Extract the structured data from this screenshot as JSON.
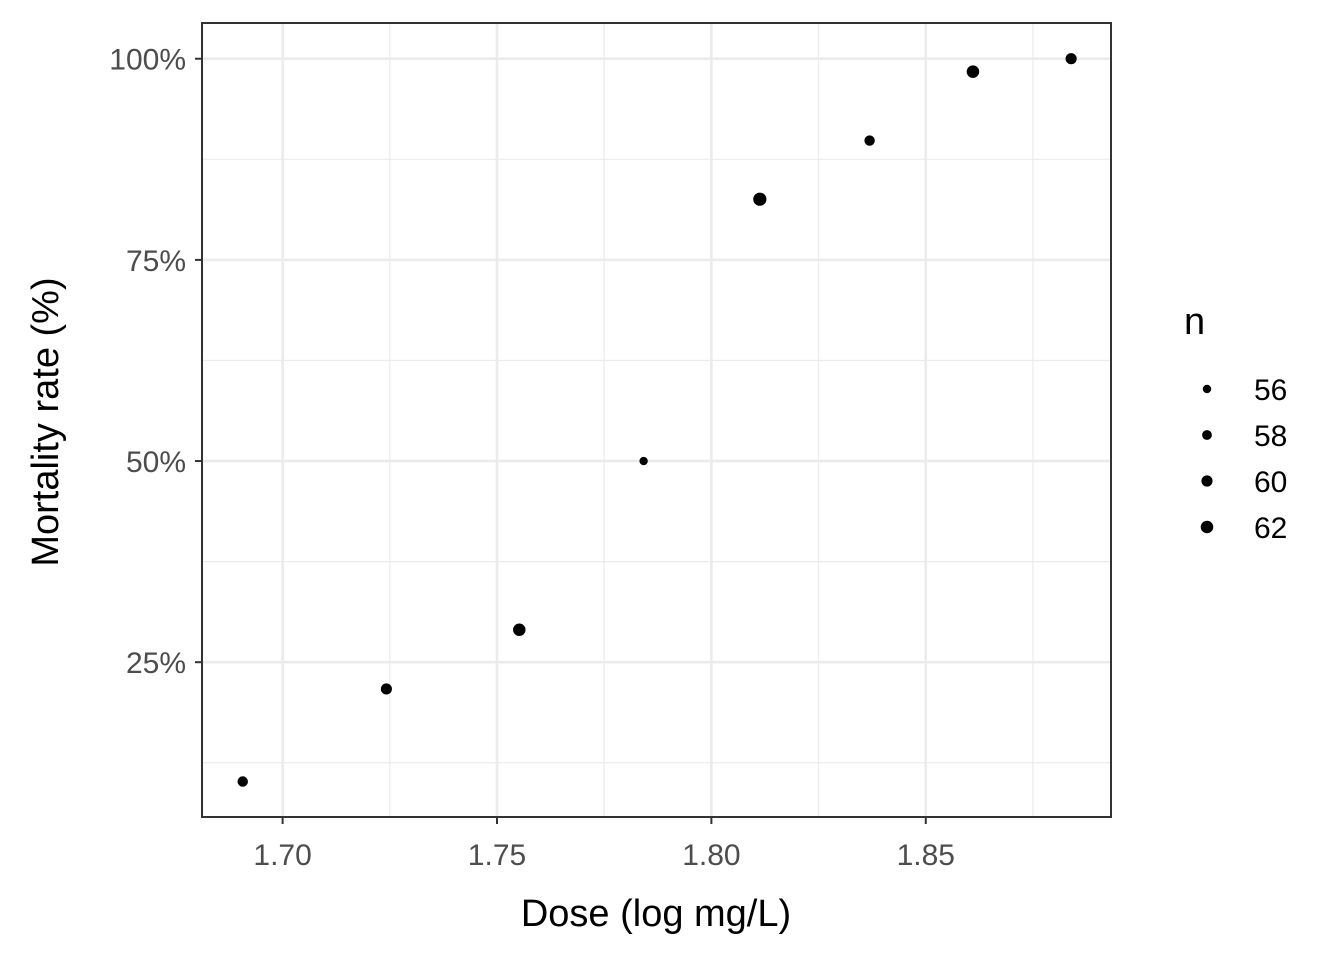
{
  "chart_data": {
    "type": "scatter",
    "xlabel": "Dose (log mg/L)",
    "ylabel": "Mortality rate (%)",
    "xlim": [
      1.6812,
      1.8932
    ],
    "ylim": [
      0.0576,
      1.0444
    ],
    "x_ticks": [
      1.7,
      1.75,
      1.8,
      1.85
    ],
    "x_tick_labels": [
      "1.70",
      "1.75",
      "1.80",
      "1.85"
    ],
    "y_ticks": [
      0.25,
      0.5,
      0.75,
      1.0
    ],
    "y_tick_labels": [
      "25%",
      "50%",
      "75%",
      "100%"
    ],
    "grid": true,
    "size_legend": {
      "title": "n",
      "placement": "right",
      "values": [
        56,
        58,
        60,
        62
      ],
      "labels": [
        "56",
        "58",
        "60",
        "62"
      ]
    },
    "points": [
      {
        "x": 1.6907,
        "y": 0.1017,
        "n": 59
      },
      {
        "x": 1.7242,
        "y": 0.2167,
        "n": 60
      },
      {
        "x": 1.7552,
        "y": 0.2903,
        "n": 62
      },
      {
        "x": 1.7842,
        "y": 0.5,
        "n": 56
      },
      {
        "x": 1.8113,
        "y": 0.8254,
        "n": 63
      },
      {
        "x": 1.8369,
        "y": 0.8983,
        "n": 59
      },
      {
        "x": 1.861,
        "y": 0.9839,
        "n": 62
      },
      {
        "x": 1.8839,
        "y": 1.0,
        "n": 60
      }
    ],
    "colors": {
      "point": "#000000",
      "panel_border": "#333333",
      "grid_major": "#ebebeb",
      "grid_minor": "#ebebeb",
      "tick_text": "#4d4d4d"
    }
  }
}
